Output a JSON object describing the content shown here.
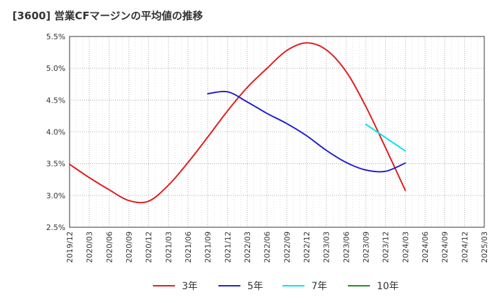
{
  "chart_data": {
    "type": "line",
    "title": "[3600]  営業CFマージンの平均値の推移",
    "xlabel": "",
    "ylabel": "",
    "ylim": [
      2.5,
      5.5
    ],
    "yticks": [
      "2.5%",
      "3.0%",
      "3.5%",
      "4.0%",
      "4.5%",
      "5.0%",
      "5.5%"
    ],
    "xticks": [
      "2019/12",
      "2020/03",
      "2020/06",
      "2020/09",
      "2020/12",
      "2021/03",
      "2021/06",
      "2021/09",
      "2021/12",
      "2022/03",
      "2022/06",
      "2022/09",
      "2022/12",
      "2023/03",
      "2023/06",
      "2023/09",
      "2023/12",
      "2024/03",
      "2024/06",
      "2024/09",
      "2024/12",
      "2025/03"
    ],
    "grid": true,
    "legend_position": "bottom",
    "series": [
      {
        "name": "3年",
        "color": "#e31a1c",
        "x": [
          "2019/12",
          "2020/03",
          "2020/06",
          "2020/09",
          "2020/12",
          "2021/03",
          "2021/06",
          "2021/09",
          "2021/12",
          "2022/03",
          "2022/06",
          "2022/09",
          "2022/12",
          "2023/03",
          "2023/06",
          "2023/09",
          "2023/12",
          "2024/03"
        ],
        "values": [
          3.49,
          3.28,
          3.09,
          2.92,
          2.91,
          3.16,
          3.52,
          3.92,
          4.33,
          4.7,
          5.0,
          5.28,
          5.4,
          5.29,
          4.95,
          4.4,
          3.75,
          3.08
        ]
      },
      {
        "name": "5年",
        "color": "#1f1fd0",
        "x": [
          "2021/09",
          "2021/12",
          "2022/03",
          "2022/06",
          "2022/09",
          "2022/12",
          "2023/03",
          "2023/06",
          "2023/09",
          "2023/12",
          "2024/03"
        ],
        "values": [
          4.6,
          4.63,
          4.47,
          4.29,
          4.13,
          3.94,
          3.71,
          3.52,
          3.4,
          3.38,
          3.51
        ]
      },
      {
        "name": "7年",
        "color": "#00e5ee",
        "x": [
          "2023/09",
          "2023/12",
          "2024/03"
        ],
        "values": [
          4.12,
          3.91,
          3.7
        ]
      },
      {
        "name": "10年",
        "color": "#228b22",
        "x": [],
        "values": []
      }
    ]
  }
}
